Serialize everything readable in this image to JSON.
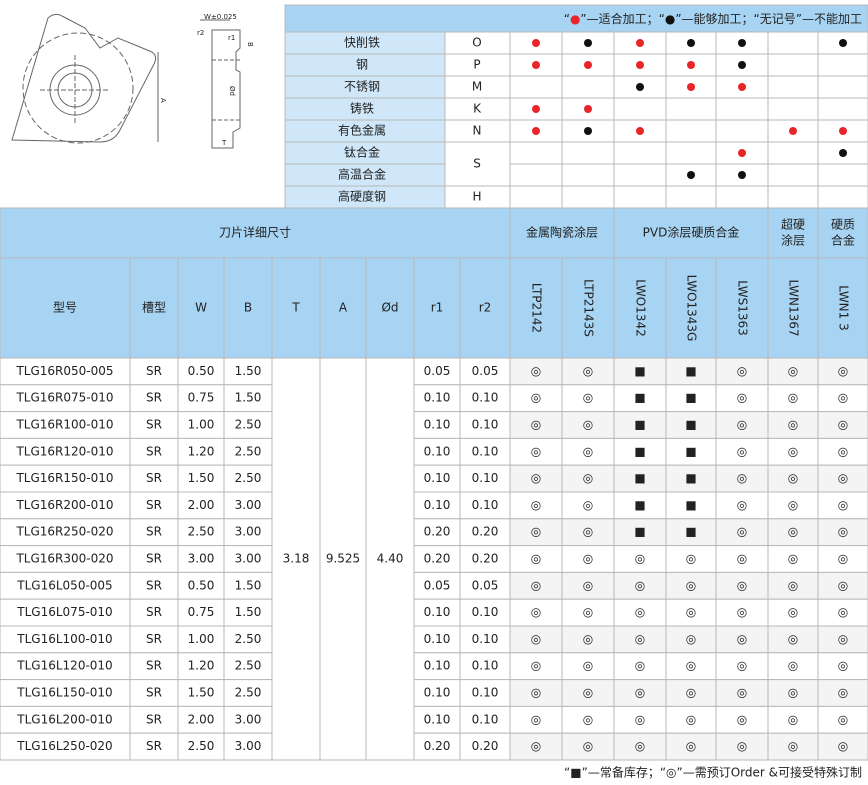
{
  "drawing": {
    "labels": [
      "W±0.025",
      "r2",
      "r1",
      "B",
      "Ød",
      "T",
      "A"
    ]
  },
  "application": {
    "legend": [
      {
        "text": "“"
      },
      {
        "text": "●",
        "color": "red"
      },
      {
        "text": "”—适合加工；“"
      },
      {
        "text": "●",
        "color": "black"
      },
      {
        "text": "”—能够加工；“无记号”—不能加工"
      }
    ],
    "colors": {
      "red": "#e8262a",
      "black": "#111111"
    },
    "rows": [
      {
        "material": "快削铁",
        "iso": "O",
        "marks": [
          "red",
          "black",
          "red",
          "black",
          "black",
          null,
          "black"
        ]
      },
      {
        "material": "钢",
        "iso": "P",
        "marks": [
          "red",
          "red",
          "red",
          "red",
          "black",
          null,
          null
        ]
      },
      {
        "material": "不锈钢",
        "iso": "M",
        "marks": [
          null,
          null,
          "black",
          "red",
          "red",
          null,
          null
        ]
      },
      {
        "material": "铸铁",
        "iso": "K",
        "marks": [
          "red",
          "red",
          null,
          null,
          null,
          null,
          null
        ]
      },
      {
        "material": "有色金属",
        "iso": "N",
        "marks": [
          "red",
          "black",
          "red",
          null,
          null,
          "red",
          "red"
        ]
      },
      {
        "material": "钛合金",
        "iso": "S",
        "marks": [
          null,
          null,
          null,
          null,
          "red",
          null,
          "black"
        ]
      },
      {
        "material": "高温合金",
        "marks": [
          null,
          null,
          null,
          "black",
          "black",
          null,
          null
        ]
      },
      {
        "material": "高硬度钢",
        "iso": "H",
        "marks": [
          null,
          null,
          null,
          null,
          null,
          null,
          null
        ]
      }
    ]
  },
  "table": {
    "title": "刀片详细尺寸",
    "groups": [
      {
        "name": [
          "金属陶瓷涂层"
        ],
        "span": 2
      },
      {
        "name": [
          "PVD涂层硬质合金"
        ],
        "span": 3
      },
      {
        "name": [
          "超硬",
          "涂层"
        ],
        "span": 1
      },
      {
        "name": [
          "硬质",
          "合金"
        ],
        "span": 1
      }
    ],
    "columns": [
      "型号",
      "槽型",
      "W",
      "B",
      "T",
      "A",
      "Ød",
      "r1",
      "r2"
    ],
    "grades": [
      "LTP2142",
      "LTP2143S",
      "LWO1342",
      "LWO1343G",
      "LWS1363",
      "LWN1367",
      "LWN1 3"
    ],
    "shared_values": [
      "3.18",
      "9.525",
      "4.40"
    ],
    "rows": [
      {
        "cells": [
          "TLG16R050-005",
          "SR",
          "0.50",
          "1.50",
          "0.05",
          "0.05"
        ],
        "stock": [
          "◎",
          "◎",
          "■",
          "■",
          "◎",
          "◎",
          "◎"
        ]
      },
      {
        "cells": [
          "TLG16R075-010",
          "SR",
          "0.75",
          "1.50",
          "0.10",
          "0.10"
        ],
        "stock": [
          "◎",
          "◎",
          "■",
          "■",
          "◎",
          "◎",
          "◎"
        ]
      },
      {
        "cells": [
          "TLG16R100-010",
          "SR",
          "1.00",
          "2.50",
          "0.10",
          "0.10"
        ],
        "stock": [
          "◎",
          "◎",
          "■",
          "■",
          "◎",
          "◎",
          "◎"
        ]
      },
      {
        "cells": [
          "TLG16R120-010",
          "SR",
          "1.20",
          "2.50",
          "0.10",
          "0.10"
        ],
        "stock": [
          "◎",
          "◎",
          "■",
          "■",
          "◎",
          "◎",
          "◎"
        ]
      },
      {
        "cells": [
          "TLG16R150-010",
          "SR",
          "1.50",
          "2.50",
          "0.10",
          "0.10"
        ],
        "stock": [
          "◎",
          "◎",
          "■",
          "■",
          "◎",
          "◎",
          "◎"
        ]
      },
      {
        "cells": [
          "TLG16R200-010",
          "SR",
          "2.00",
          "3.00",
          "0.10",
          "0.10"
        ],
        "stock": [
          "◎",
          "◎",
          "■",
          "■",
          "◎",
          "◎",
          "◎"
        ]
      },
      {
        "cells": [
          "TLG16R250-020",
          "SR",
          "2.50",
          "3.00",
          "0.20",
          "0.20"
        ],
        "stock": [
          "◎",
          "◎",
          "■",
          "■",
          "◎",
          "◎",
          "◎"
        ]
      },
      {
        "cells": [
          "TLG16R300-020",
          "SR",
          "3.00",
          "3.00",
          "0.20",
          "0.20"
        ],
        "stock": [
          "◎",
          "◎",
          "◎",
          "◎",
          "◎",
          "◎",
          "◎"
        ]
      },
      {
        "cells": [
          "TLG16L050-005",
          "SR",
          "0.50",
          "1.50",
          "0.05",
          "0.05"
        ],
        "stock": [
          "◎",
          "◎",
          "◎",
          "◎",
          "◎",
          "◎",
          "◎"
        ]
      },
      {
        "cells": [
          "TLG16L075-010",
          "SR",
          "0.75",
          "1.50",
          "0.10",
          "0.10"
        ],
        "stock": [
          "◎",
          "◎",
          "◎",
          "◎",
          "◎",
          "◎",
          "◎"
        ]
      },
      {
        "cells": [
          "TLG16L100-010",
          "SR",
          "1.00",
          "2.50",
          "0.10",
          "0.10"
        ],
        "stock": [
          "◎",
          "◎",
          "◎",
          "◎",
          "◎",
          "◎",
          "◎"
        ]
      },
      {
        "cells": [
          "TLG16L120-010",
          "SR",
          "1.20",
          "2.50",
          "0.10",
          "0.10"
        ],
        "stock": [
          "◎",
          "◎",
          "◎",
          "◎",
          "◎",
          "◎",
          "◎"
        ]
      },
      {
        "cells": [
          "TLG16L150-010",
          "SR",
          "1.50",
          "2.50",
          "0.10",
          "0.10"
        ],
        "stock": [
          "◎",
          "◎",
          "◎",
          "◎",
          "◎",
          "◎",
          "◎"
        ]
      },
      {
        "cells": [
          "TLG16L200-010",
          "SR",
          "2.00",
          "3.00",
          "0.10",
          "0.10"
        ],
        "stock": [
          "◎",
          "◎",
          "◎",
          "◎",
          "◎",
          "◎",
          "◎"
        ]
      },
      {
        "cells": [
          "TLG16L250-020",
          "SR",
          "2.50",
          "3.00",
          "0.20",
          "0.20"
        ],
        "stock": [
          "◎",
          "◎",
          "◎",
          "◎",
          "◎",
          "◎",
          "◎"
        ]
      }
    ]
  },
  "footer": "“■”—常备库存；“◎”—需预订Order &可接受特殊订制"
}
